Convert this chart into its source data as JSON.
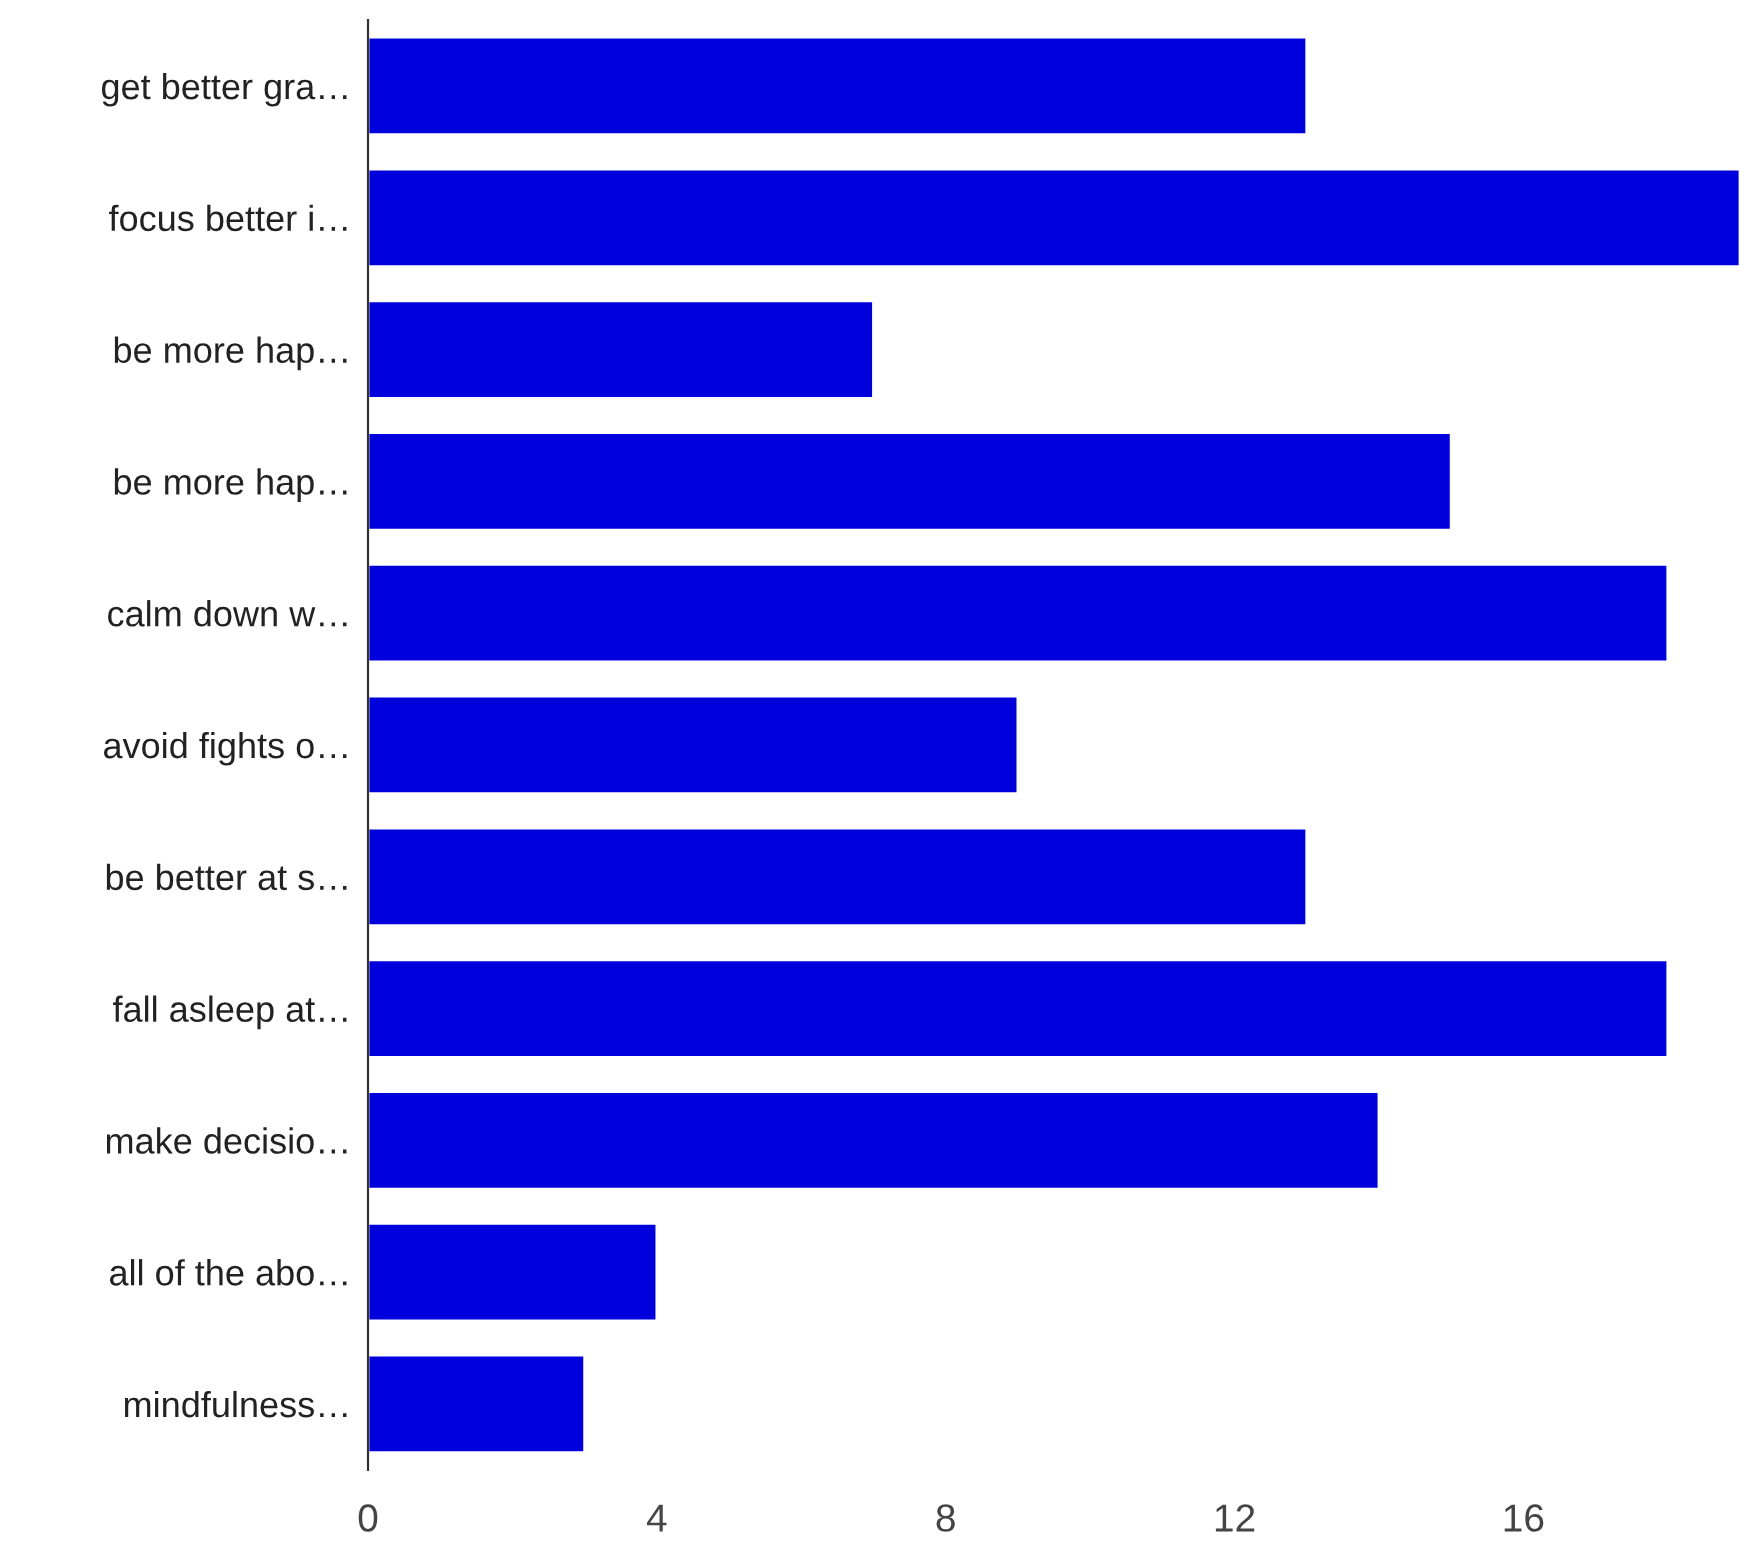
{
  "chart_data": {
    "type": "bar",
    "orientation": "horizontal",
    "categories": [
      "get better gra…",
      "focus better i…",
      "be more hap…",
      "be more hap…",
      "calm down w…",
      "avoid fights o…",
      "be better at s…",
      "fall asleep at…",
      "make decisio…",
      "all of the abo…",
      "mindfulness…"
    ],
    "values": [
      13,
      19,
      7,
      15,
      18,
      9,
      13,
      18,
      14,
      4,
      3
    ],
    "color": "#0000dd",
    "xlim": [
      0,
      19
    ],
    "xticks": [
      0,
      4,
      8,
      12,
      16
    ],
    "grid": false,
    "legend": false
  }
}
